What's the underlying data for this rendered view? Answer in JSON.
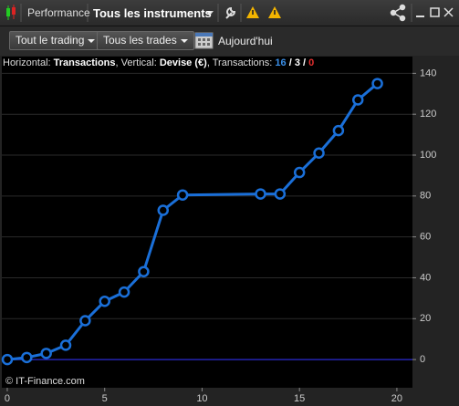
{
  "toolbar": {
    "tab": "Performance",
    "instrument": "Tous les instruments"
  },
  "filters": {
    "trading": "Tout le trading",
    "trades": "Tous les trades",
    "date": "Aujourd'hui"
  },
  "chart_data": {
    "type": "line",
    "header": {
      "x_prefix": "Horizontal:",
      "x_label": "Transactions",
      "comma": ",",
      "y_prefix": "Vertical:",
      "y_label": "Devise (€)",
      "count_prefix": "Transactions:",
      "separator": "/",
      "counts": [
        16,
        3,
        0
      ],
      "count_colors": [
        "#3a8ee6",
        "#ffffff",
        "#e53030"
      ]
    },
    "watermark": "© IT-Finance.com",
    "x": [
      0,
      1,
      2,
      3,
      4,
      5,
      6,
      7,
      8,
      9,
      13,
      14,
      15,
      16,
      17,
      18,
      19
    ],
    "values": [
      0,
      1,
      3,
      7,
      19,
      28.5,
      33,
      43,
      73,
      80.5,
      81,
      81,
      91.5,
      101,
      112,
      127,
      135
    ],
    "color": "#1a6fd8",
    "xlim": [
      -0.28,
      20.8
    ],
    "ylim": [
      -13.8,
      148.2
    ],
    "xticks": [
      0,
      5,
      10,
      15,
      20
    ],
    "yticks": [
      0,
      20,
      40,
      60,
      80,
      100,
      120,
      140
    ],
    "grid": true
  }
}
